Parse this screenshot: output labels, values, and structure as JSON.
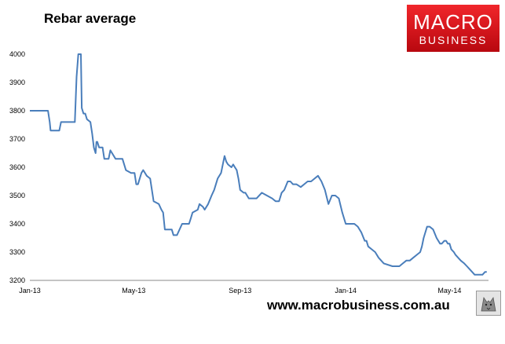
{
  "header": {
    "title": "Rebar average"
  },
  "logo": {
    "line1": "MACRO",
    "line2": "BUSINESS"
  },
  "footer": {
    "url": "www.macrobusiness.com.au"
  },
  "badge": {
    "icon": "wolf-icon"
  },
  "colors": {
    "line": "#4a7ebb",
    "logo_red": "#e11d24"
  },
  "chart_data": {
    "type": "line",
    "title": "Rebar average",
    "xlabel": "",
    "ylabel": "",
    "ylim": [
      3200,
      4000
    ],
    "yticks": [
      3200,
      3300,
      3400,
      3500,
      3600,
      3700,
      3800,
      3900,
      4000
    ],
    "xrange": [
      "2013-01-01",
      "2014-06-15"
    ],
    "xticks": [
      {
        "label": "Jan-13",
        "date": "2013-01-01"
      },
      {
        "label": "May-13",
        "date": "2013-05-01"
      },
      {
        "label": "Sep-13",
        "date": "2013-09-01"
      },
      {
        "label": "Jan-14",
        "date": "2014-01-01"
      },
      {
        "label": "May-14",
        "date": "2014-05-01"
      }
    ],
    "grid": false,
    "legend": "none",
    "series": [
      {
        "x": [
          "2013-01-01",
          "2013-01-22",
          "2013-01-24",
          "2013-01-25",
          "2013-02-04",
          "2013-02-06",
          "2013-02-22",
          "2013-02-24",
          "2013-02-26",
          "2013-02-27",
          "2013-03-01",
          "2013-03-02",
          "2013-03-04",
          "2013-03-06",
          "2013-03-08",
          "2013-03-12",
          "2013-03-14",
          "2013-03-16",
          "2013-03-18",
          "2013-03-19",
          "2013-03-20",
          "2013-03-22",
          "2013-03-26",
          "2013-03-28",
          "2013-04-02",
          "2013-04-04",
          "2013-04-10",
          "2013-04-14",
          "2013-04-18",
          "2013-04-22",
          "2013-04-28",
          "2013-05-02",
          "2013-05-04",
          "2013-05-06",
          "2013-05-10",
          "2013-05-12",
          "2013-05-14",
          "2013-05-16",
          "2013-05-20",
          "2013-05-22",
          "2013-05-24",
          "2013-05-30",
          "2013-06-02",
          "2013-06-04",
          "2013-06-06",
          "2013-06-08",
          "2013-06-12",
          "2013-06-14",
          "2013-06-16",
          "2013-06-20",
          "2013-06-26",
          "2013-07-01",
          "2013-07-04",
          "2013-07-06",
          "2013-07-08",
          "2013-07-14",
          "2013-07-16",
          "2013-07-20",
          "2013-07-22",
          "2013-07-26",
          "2013-07-30",
          "2013-08-02",
          "2013-08-06",
          "2013-08-10",
          "2013-08-14",
          "2013-08-16",
          "2013-08-18",
          "2013-08-22",
          "2013-08-24",
          "2013-08-26",
          "2013-08-28",
          "2013-08-30",
          "2013-09-01",
          "2013-09-05",
          "2013-09-07",
          "2013-09-09",
          "2013-09-11",
          "2013-09-13",
          "2013-09-16",
          "2013-09-20",
          "2013-09-26",
          "2013-10-02",
          "2013-10-08",
          "2013-10-12",
          "2013-10-16",
          "2013-10-19",
          "2013-10-22",
          "2013-10-26",
          "2013-10-29",
          "2013-11-01",
          "2013-11-05",
          "2013-11-10",
          "2013-11-14",
          "2013-11-18",
          "2013-11-22",
          "2013-11-26",
          "2013-11-30",
          "2013-12-04",
          "2013-12-08",
          "2013-12-12",
          "2013-12-16",
          "2013-12-20",
          "2013-12-24",
          "2013-12-28",
          "2014-01-01",
          "2014-01-03",
          "2014-01-05",
          "2014-01-07",
          "2014-01-11",
          "2014-01-15",
          "2014-01-19",
          "2014-01-23",
          "2014-01-25",
          "2014-01-27",
          "2014-01-31",
          "2014-02-04",
          "2014-02-08",
          "2014-02-14",
          "2014-02-24",
          "2014-03-04",
          "2014-03-08",
          "2014-03-12",
          "2014-03-16",
          "2014-03-20",
          "2014-03-24",
          "2014-03-28",
          "2014-03-30",
          "2014-04-01",
          "2014-04-05",
          "2014-04-08",
          "2014-04-12",
          "2014-04-16",
          "2014-04-20",
          "2014-04-22",
          "2014-04-25",
          "2014-04-27",
          "2014-04-29",
          "2014-05-01",
          "2014-05-03",
          "2014-05-06",
          "2014-05-08",
          "2014-05-11",
          "2014-05-14",
          "2014-05-18",
          "2014-05-21",
          "2014-05-24",
          "2014-05-27",
          "2014-05-30",
          "2014-06-02",
          "2014-06-05",
          "2014-06-08",
          "2014-06-11",
          "2014-06-13"
        ],
        "y": [
          3800,
          3800,
          3760,
          3730,
          3730,
          3760,
          3760,
          3920,
          4000,
          4000,
          4000,
          3810,
          3790,
          3790,
          3770,
          3760,
          3720,
          3670,
          3650,
          3690,
          3690,
          3670,
          3670,
          3630,
          3630,
          3660,
          3630,
          3630,
          3630,
          3590,
          3580,
          3580,
          3540,
          3540,
          3580,
          3590,
          3580,
          3570,
          3560,
          3520,
          3480,
          3470,
          3450,
          3440,
          3380,
          3380,
          3380,
          3380,
          3360,
          3360,
          3400,
          3400,
          3400,
          3420,
          3440,
          3450,
          3470,
          3460,
          3450,
          3470,
          3500,
          3520,
          3560,
          3580,
          3640,
          3620,
          3610,
          3600,
          3610,
          3600,
          3590,
          3560,
          3520,
          3510,
          3510,
          3500,
          3490,
          3490,
          3490,
          3490,
          3510,
          3500,
          3490,
          3480,
          3480,
          3510,
          3520,
          3550,
          3550,
          3540,
          3540,
          3530,
          3540,
          3550,
          3550,
          3560,
          3570,
          3550,
          3520,
          3470,
          3500,
          3500,
          3490,
          3440,
          3400,
          3400,
          3400,
          3400,
          3400,
          3390,
          3370,
          3340,
          3340,
          3320,
          3310,
          3300,
          3280,
          3260,
          3250,
          3250,
          3260,
          3270,
          3270,
          3280,
          3290,
          3300,
          3320,
          3350,
          3390,
          3390,
          3380,
          3350,
          3330,
          3330,
          3340,
          3340,
          3330,
          3330,
          3310,
          3300,
          3290,
          3280,
          3270,
          3260,
          3250,
          3240,
          3230,
          3220,
          3220,
          3220,
          3220,
          3230,
          3230
        ]
      }
    ]
  }
}
